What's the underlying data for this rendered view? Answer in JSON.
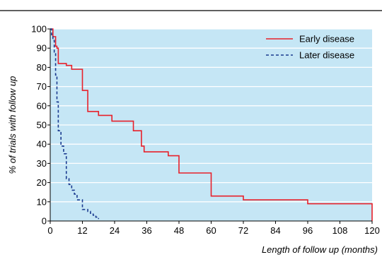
{
  "chart_data": {
    "type": "line",
    "title": "",
    "xlabel": "Length of follow up (months)",
    "ylabel": "% of trials with follow up",
    "xlim": [
      0,
      120
    ],
    "ylim": [
      0,
      100
    ],
    "xticks": [
      0,
      12,
      24,
      36,
      48,
      60,
      72,
      84,
      96,
      108,
      120
    ],
    "yticks": [
      0,
      10,
      20,
      30,
      40,
      50,
      60,
      70,
      80,
      90,
      100
    ],
    "grid": "horizontal",
    "legend_position": "top-right",
    "plot_background": "#c5e6f5",
    "series": [
      {
        "name": "Early disease",
        "color": "#e8202a",
        "dash": "solid",
        "x": [
          0,
          1,
          2,
          2.5,
          3,
          6,
          8,
          12,
          14,
          18,
          23,
          31,
          34,
          35,
          44,
          48,
          60,
          72,
          96,
          120
        ],
        "y": [
          100,
          96,
          91,
          90,
          82,
          81,
          79,
          68,
          57,
          55,
          52,
          47,
          39,
          36,
          34,
          25,
          13,
          11,
          9,
          0
        ]
      },
      {
        "name": "Later disease",
        "color": "#1a3a8f",
        "dash": "dashed",
        "x": [
          0,
          0.5,
          1,
          1.5,
          2,
          2.5,
          3,
          4,
          5,
          6,
          7,
          8,
          9,
          10,
          12,
          14,
          15,
          16,
          17,
          18
        ],
        "y": [
          100,
          97,
          94,
          88,
          76,
          62,
          47,
          39,
          35,
          22,
          19,
          16,
          14,
          11,
          6,
          5,
          4,
          3,
          2,
          1
        ]
      }
    ]
  }
}
